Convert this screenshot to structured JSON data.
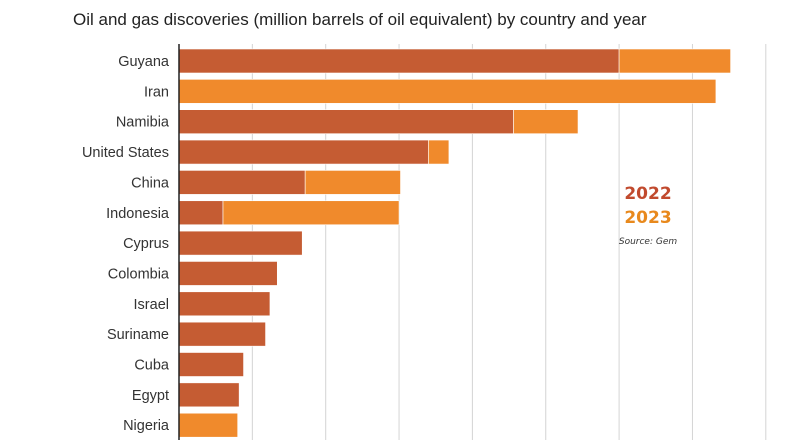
{
  "title": "Oil and gas discoveries (million barrels of oil equivalent) by country and year",
  "legend": {
    "label_2022": "2022",
    "label_2023": "2023"
  },
  "source": "Source: Gem",
  "colors": {
    "y2022": "#c55c33",
    "y2023": "#f08a2c",
    "grid": "#d4d4d4",
    "axis": "#222222",
    "label": "#333333"
  },
  "chart_data": {
    "type": "bar",
    "orientation": "horizontal",
    "stacked": true,
    "title": "Oil and gas discoveries (million barrels of oil equivalent) by country and year",
    "categories": [
      "Guyana",
      "Iran",
      "Namibia",
      "United States",
      "China",
      "Indonesia",
      "Cyprus",
      "Colombia",
      "Israel",
      "Suriname",
      "Cuba",
      "Egypt",
      "Nigeria"
    ],
    "series": [
      {
        "name": "2022",
        "color": "#c55c33",
        "values": [
          3000,
          0,
          2280,
          1700,
          860,
          300,
          840,
          670,
          620,
          590,
          440,
          410,
          0
        ]
      },
      {
        "name": "2023",
        "color": "#f08a2c",
        "values": [
          760,
          3660,
          440,
          140,
          650,
          1200,
          0,
          0,
          0,
          0,
          0,
          0,
          400
        ]
      }
    ],
    "xlim": [
      0,
      4000
    ],
    "grid": true,
    "legend_position": "right"
  }
}
